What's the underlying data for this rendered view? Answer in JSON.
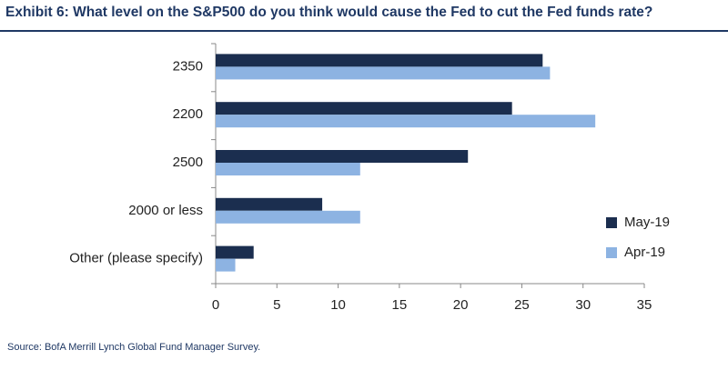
{
  "title": "Exhibit 6: What level on the S&P500 do you think would cause the Fed to cut the Fed funds rate?",
  "source": "Source: BofA Merrill Lynch Global Fund Manager Survey.",
  "colors": {
    "title": "#1f3864",
    "may": "#1b2e4f",
    "apr": "#8db3e2"
  },
  "chart_data": {
    "type": "bar",
    "orientation": "horizontal",
    "categories": [
      "2350",
      "2200",
      "2500",
      "2000 or less",
      "Other (please specify)"
    ],
    "series": [
      {
        "name": "May-19",
        "values": [
          26.7,
          24.2,
          20.6,
          8.7,
          3.1
        ]
      },
      {
        "name": "Apr-19",
        "values": [
          27.3,
          31.0,
          11.8,
          11.8,
          1.6
        ]
      }
    ],
    "xlim": [
      0,
      35
    ],
    "xticks": [
      "0",
      "5",
      "10",
      "15",
      "20",
      "25",
      "30",
      "35"
    ],
    "grid": false,
    "legend_position": "right"
  }
}
